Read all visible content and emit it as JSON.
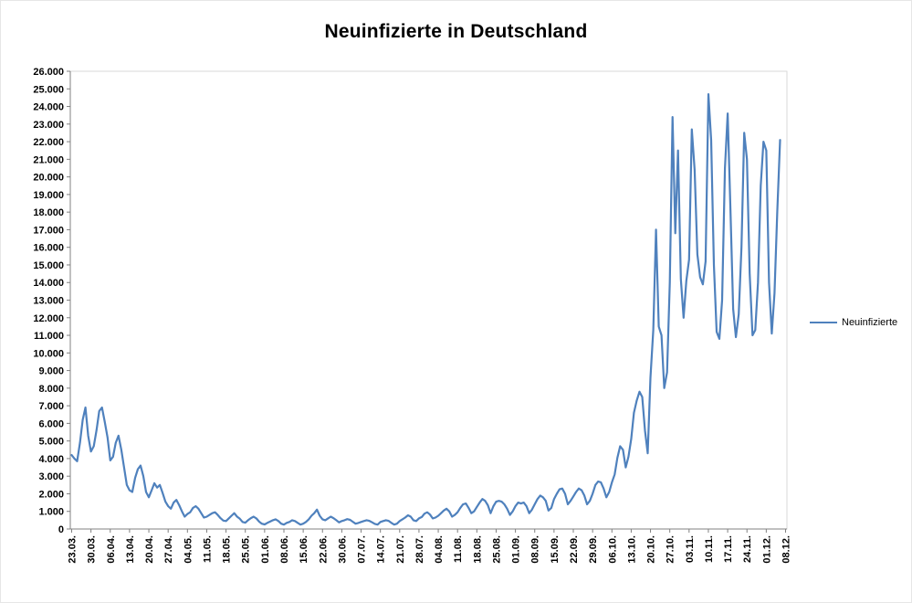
{
  "chart_data": {
    "type": "line",
    "title": "Neuinfizierte in Deutschland",
    "legend": {
      "label": "Neuinfizierte",
      "position": "right"
    },
    "series_color": "#4F81BD",
    "axis_color": "#808080",
    "plot_border_color": "#D9D9D9",
    "grid": false,
    "ylim": [
      0,
      26000
    ],
    "y_tick_step": 1000,
    "y_tick_labels": [
      "0",
      "1.000",
      "2.000",
      "3.000",
      "4.000",
      "5.000",
      "6.000",
      "7.000",
      "8.000",
      "9.000",
      "10.000",
      "11.000",
      "12.000",
      "13.000",
      "14.000",
      "15.000",
      "16.000",
      "17.000",
      "18.000",
      "19.000",
      "20.000",
      "21.000",
      "22.000",
      "23.000",
      "24.000",
      "25.000",
      "26.000"
    ],
    "x_tick_labels": [
      "23.03.",
      "30.03.",
      "06.04.",
      "13.04.",
      "20.04.",
      "27.04.",
      "04.05.",
      "11.05.",
      "18.05.",
      "25.05.",
      "01.06.",
      "08.06.",
      "15.06.",
      "22.06.",
      "30.06.",
      "07.07.",
      "14.07.",
      "21.07.",
      "28.07.",
      "04.08.",
      "11.08.",
      "18.08.",
      "25.08.",
      "01.09.",
      "08.09.",
      "15.09.",
      "22.09.",
      "29.09.",
      "06.10.",
      "13.10.",
      "20.10.",
      "27.10.",
      "03.11.",
      "10.11.",
      "17.11.",
      "24.11.",
      "01.12.",
      "08.12."
    ],
    "x_tick_indices": [
      0,
      7,
      14,
      21,
      28,
      35,
      42,
      49,
      56,
      63,
      70,
      77,
      84,
      91,
      98,
      105,
      112,
      119,
      126,
      133,
      140,
      147,
      154,
      161,
      168,
      175,
      182,
      189,
      196,
      203,
      210,
      217,
      224,
      231,
      238,
      245,
      252,
      259
    ],
    "axis_total_slots": 260,
    "series": [
      {
        "name": "Neuinfizierte",
        "values": [
          4200,
          4000,
          3850,
          4900,
          6200,
          6900,
          5300,
          4400,
          4700,
          5600,
          6700,
          6900,
          6100,
          5200,
          3900,
          4100,
          4900,
          5300,
          4500,
          3500,
          2500,
          2200,
          2100,
          2900,
          3400,
          3600,
          3000,
          2100,
          1800,
          2200,
          2600,
          2350,
          2500,
          2050,
          1550,
          1300,
          1150,
          1500,
          1650,
          1350,
          1000,
          700,
          850,
          950,
          1200,
          1300,
          1150,
          900,
          650,
          700,
          800,
          900,
          950,
          800,
          620,
          480,
          450,
          600,
          750,
          900,
          700,
          580,
          400,
          360,
          500,
          620,
          700,
          600,
          420,
          300,
          260,
          350,
          420,
          500,
          550,
          450,
          300,
          250,
          350,
          400,
          500,
          450,
          350,
          250,
          300,
          400,
          550,
          750,
          900,
          1100,
          750,
          550,
          500,
          600,
          700,
          620,
          500,
          380,
          450,
          500,
          560,
          520,
          410,
          300,
          340,
          400,
          450,
          500,
          460,
          380,
          290,
          250,
          400,
          450,
          500,
          460,
          350,
          250,
          300,
          450,
          550,
          650,
          780,
          700,
          500,
          450,
          600,
          680,
          870,
          950,
          820,
          600,
          650,
          750,
          900,
          1050,
          1150,
          1000,
          700,
          800,
          950,
          1200,
          1400,
          1450,
          1200,
          900,
          1000,
          1250,
          1500,
          1700,
          1600,
          1350,
          900,
          1300,
          1550,
          1600,
          1550,
          1400,
          1150,
          800,
          1000,
          1300,
          1500,
          1450,
          1500,
          1300,
          900,
          1100,
          1400,
          1700,
          1900,
          1800,
          1600,
          1050,
          1200,
          1700,
          2000,
          2250,
          2300,
          2000,
          1400,
          1600,
          1850,
          2100,
          2300,
          2200,
          1900,
          1400,
          1600,
          2000,
          2500,
          2700,
          2650,
          2300,
          1800,
          2100,
          2650,
          3100,
          4050,
          4700,
          4500,
          3500,
          4100,
          5100,
          6600,
          7300,
          7800,
          7500,
          5600,
          4300,
          8600,
          11300,
          17000,
          11500,
          11000,
          8000,
          8900,
          14000,
          23400,
          16800,
          21500,
          14200,
          12000,
          14100,
          15300,
          22700,
          20400,
          15600,
          14300,
          13900,
          15200,
          24700,
          22100,
          15000,
          11200,
          10800,
          13000,
          20500,
          23600,
          18200,
          12500,
          10900,
          12200,
          16000,
          22500,
          21000,
          14500,
          11000,
          11300,
          14000,
          19500,
          22000,
          21500,
          14000,
          11100,
          13400,
          18000,
          22100
        ]
      }
    ]
  }
}
